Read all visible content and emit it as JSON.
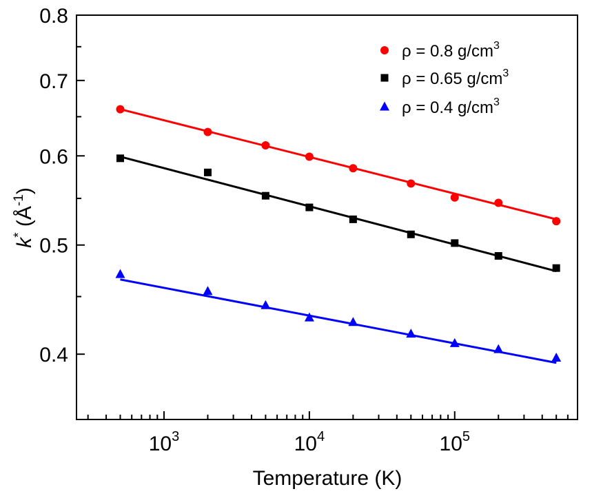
{
  "chart_data": {
    "type": "scatter",
    "xscale": "log",
    "yscale": "log",
    "xlim": [
      250,
      700000
    ],
    "ylim": [
      0.35,
      0.8
    ],
    "grid": false,
    "legend_position": "top-right",
    "xlabel": "Temperature (K)",
    "ylabel": {
      "symbol": "k",
      "symbol_sup": "*",
      "unit_open": " (Å",
      "unit_sup": "-1",
      "unit_close": ")"
    },
    "x_ticks": [
      {
        "value": 1000,
        "base": "10",
        "exp": "3"
      },
      {
        "value": 10000,
        "base": "10",
        "exp": "4"
      },
      {
        "value": 100000,
        "base": "10",
        "exp": "5"
      }
    ],
    "y_ticks": [
      {
        "value": 0.4,
        "label": "0.4"
      },
      {
        "value": 0.5,
        "label": "0.5"
      },
      {
        "value": 0.6,
        "label": "0.6"
      },
      {
        "value": 0.7,
        "label": "0.7"
      },
      {
        "value": 0.8,
        "label": "0.8"
      }
    ],
    "series": [
      {
        "name": "ρ = 0.8 g/cm",
        "name_sup": "3",
        "marker": "circle",
        "color": "#ff0000",
        "x": [
          500,
          2000,
          5000,
          10000,
          20000,
          50000,
          100000,
          200000,
          500000
        ],
        "y": [
          0.66,
          0.63,
          0.613,
          0.599,
          0.585,
          0.567,
          0.551,
          0.545,
          0.525
        ],
        "fit": [
          [
            500,
            0.66
          ],
          [
            500000,
            0.527
          ]
        ]
      },
      {
        "name": "ρ = 0.65 g/cm",
        "name_sup": "3",
        "marker": "square",
        "color": "#000000",
        "x": [
          500,
          2000,
          5000,
          10000,
          20000,
          50000,
          100000,
          200000,
          500000
        ],
        "y": [
          0.597,
          0.58,
          0.553,
          0.54,
          0.527,
          0.511,
          0.502,
          0.489,
          0.477
        ],
        "fit": [
          [
            500,
            0.599
          ],
          [
            500000,
            0.474
          ]
        ]
      },
      {
        "name": "ρ = 0.4 g/cm",
        "name_sup": "3",
        "marker": "triangle",
        "color": "#0000ff",
        "x": [
          500,
          2000,
          5000,
          10000,
          20000,
          50000,
          100000,
          200000,
          500000
        ],
        "y": [
          0.471,
          0.455,
          0.442,
          0.431,
          0.427,
          0.417,
          0.409,
          0.404,
          0.397
        ],
        "fit": [
          [
            500,
            0.466
          ],
          [
            500000,
            0.393
          ]
        ]
      }
    ]
  }
}
